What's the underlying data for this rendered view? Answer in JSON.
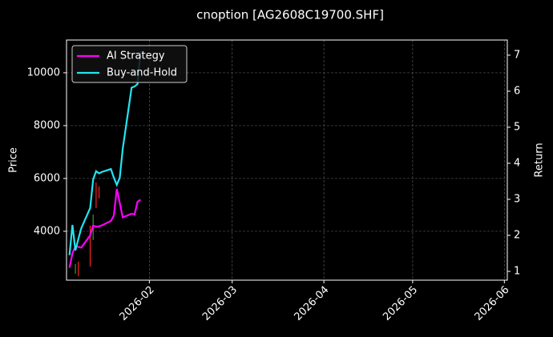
{
  "chart_data": {
    "type": "line",
    "title": "cnoption [AG2608C19700.SHF]",
    "y_label": "Price",
    "y2_label": "Return",
    "x": [
      5,
      6,
      7,
      8,
      9,
      12,
      13,
      14,
      15,
      16,
      19,
      20,
      21,
      22,
      23,
      26,
      27,
      28,
      29
    ],
    "xlim": [
      4,
      153
    ],
    "xticks": [
      {
        "value": 32,
        "label": "2026-02"
      },
      {
        "value": 60,
        "label": "2026-03"
      },
      {
        "value": 91,
        "label": "2026-04"
      },
      {
        "value": 121,
        "label": "2026-05"
      },
      {
        "value": 152,
        "label": "2026-06"
      }
    ],
    "ylim": [
      2150,
      11240
    ],
    "yticks": [
      4000,
      6000,
      8000,
      10000
    ],
    "y2lim": [
      0.756,
      7.42
    ],
    "y2ticks": [
      1,
      2,
      3,
      4,
      5,
      6,
      7
    ],
    "grid": true,
    "legend": "upper-left",
    "series": [
      {
        "name": "AI Strategy",
        "color": "#ff00ff",
        "axis": "y2",
        "values": [
          1.1,
          1.5,
          1.7,
          1.68,
          1.66,
          2.0,
          2.27,
          2.24,
          2.25,
          2.28,
          2.4,
          2.55,
          3.29,
          2.9,
          2.5,
          2.6,
          2.58,
          2.93,
          2.99
        ]
      },
      {
        "name": "Buy-and-Hold",
        "color": "#22e5f0",
        "axis": "y2",
        "values": [
          1.45,
          2.29,
          1.58,
          1.9,
          2.2,
          2.76,
          3.55,
          3.78,
          3.72,
          3.76,
          3.84,
          3.6,
          3.4,
          3.6,
          4.4,
          6.1,
          6.13,
          6.2,
          7.1
        ]
      }
    ],
    "candles": {
      "x": [
        7,
        8,
        12,
        13,
        14,
        15
      ],
      "high": [
        2758,
        2848,
        4212,
        4636,
        5848,
        5697
      ],
      "low": [
        2394,
        2303,
        2667,
        3667,
        4879,
        5242
      ],
      "colors": [
        "#2ca02c",
        "#ff2020",
        "#ff2020",
        "#2ca02c",
        "#ff2020",
        "#ff2020"
      ]
    }
  }
}
